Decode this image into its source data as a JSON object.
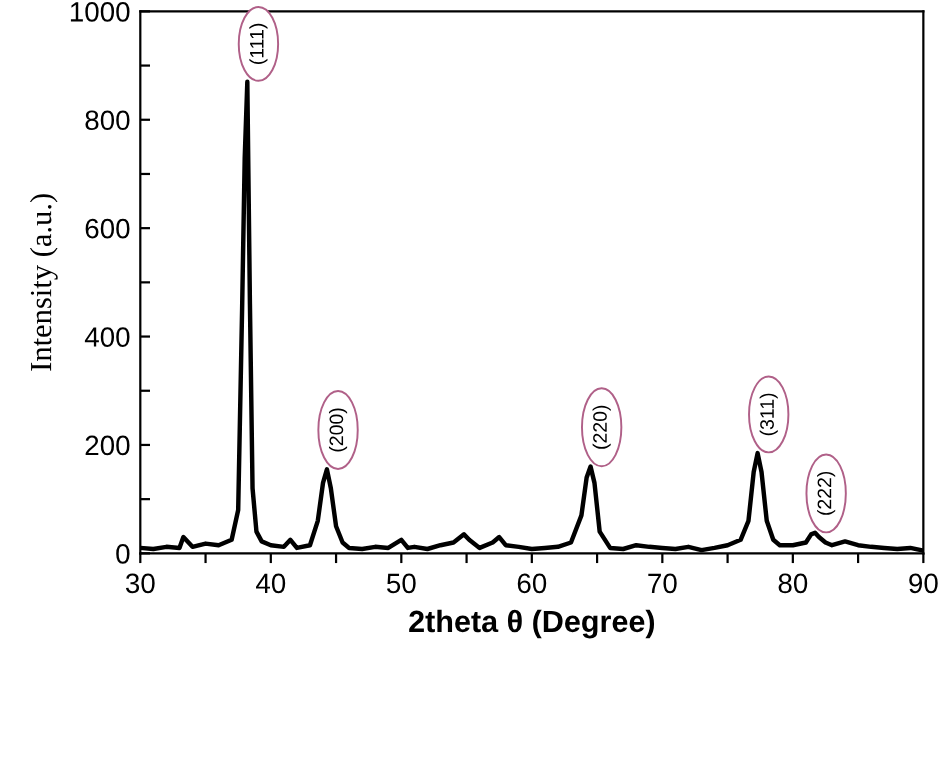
{
  "chart_data": {
    "type": "line",
    "xlabel": "2theta θ (Degree)",
    "ylabel": "Intensity (a.u.)",
    "xlim": [
      30,
      90
    ],
    "ylim": [
      0,
      1000
    ],
    "xticks": [
      30,
      {
        "value": 35,
        "label": null
      },
      40,
      {
        "value": 45,
        "label": null
      },
      50,
      {
        "value": 55,
        "label": null
      },
      60,
      {
        "value": 65,
        "label": null
      },
      70,
      {
        "value": 75,
        "label": null
      },
      80,
      {
        "value": 85,
        "label": null
      },
      90
    ],
    "yticks": [
      0,
      {
        "value": 100,
        "label": null
      },
      200,
      {
        "value": 300,
        "label": null
      },
      400,
      {
        "value": 500,
        "label": null
      },
      600,
      {
        "value": 700,
        "label": null
      },
      800,
      {
        "value": 900,
        "label": null
      },
      1000
    ],
    "grid": false,
    "legend": false,
    "marker": "none",
    "line_style": "solid",
    "series": [
      {
        "color": "#000000",
        "x": [
          30,
          31,
          32,
          33,
          33.3,
          34,
          35,
          36,
          37,
          37.5,
          37.8,
          38.0,
          38.2,
          38.4,
          38.6,
          38.9,
          39.3,
          40,
          41,
          41.5,
          42,
          43,
          43.6,
          44.0,
          44.3,
          44.6,
          45.0,
          45.5,
          46,
          47,
          48,
          49,
          50,
          50.5,
          51,
          52,
          53,
          54,
          54.8,
          55.2,
          56,
          57,
          57.5,
          58,
          59,
          60,
          61,
          62,
          63,
          63.8,
          64.2,
          64.5,
          64.8,
          65.2,
          66,
          67,
          68,
          69,
          70,
          71,
          72,
          73,
          74,
          75,
          76,
          76.6,
          77.0,
          77.3,
          77.6,
          78.0,
          78.5,
          79,
          80,
          81,
          81.4,
          81.7,
          82.0,
          82.5,
          83,
          84,
          85,
          86,
          87,
          88,
          89,
          90
        ],
        "values": [
          10,
          8,
          12,
          10,
          30,
          12,
          18,
          15,
          25,
          80,
          450,
          730,
          870,
          460,
          120,
          40,
          22,
          15,
          12,
          25,
          10,
          15,
          60,
          130,
          155,
          120,
          50,
          20,
          10,
          8,
          12,
          10,
          25,
          10,
          12,
          8,
          15,
          20,
          35,
          25,
          10,
          20,
          30,
          15,
          12,
          8,
          10,
          12,
          20,
          70,
          140,
          160,
          130,
          40,
          10,
          8,
          15,
          12,
          10,
          8,
          12,
          6,
          10,
          15,
          25,
          60,
          150,
          185,
          150,
          60,
          25,
          15,
          15,
          20,
          35,
          38,
          30,
          20,
          15,
          22,
          15,
          12,
          10,
          8,
          10,
          5
        ]
      }
    ],
    "annotations": [
      {
        "text": "(111)",
        "x": 38.2,
        "y": 870
      },
      {
        "text": "(200)",
        "x": 44.3,
        "y": 155
      },
      {
        "text": "(220)",
        "x": 64.5,
        "y": 160
      },
      {
        "text": "(311)",
        "x": 77.3,
        "y": 185
      },
      {
        "text": "(222)",
        "x": 81.7,
        "y": 38
      }
    ]
  }
}
